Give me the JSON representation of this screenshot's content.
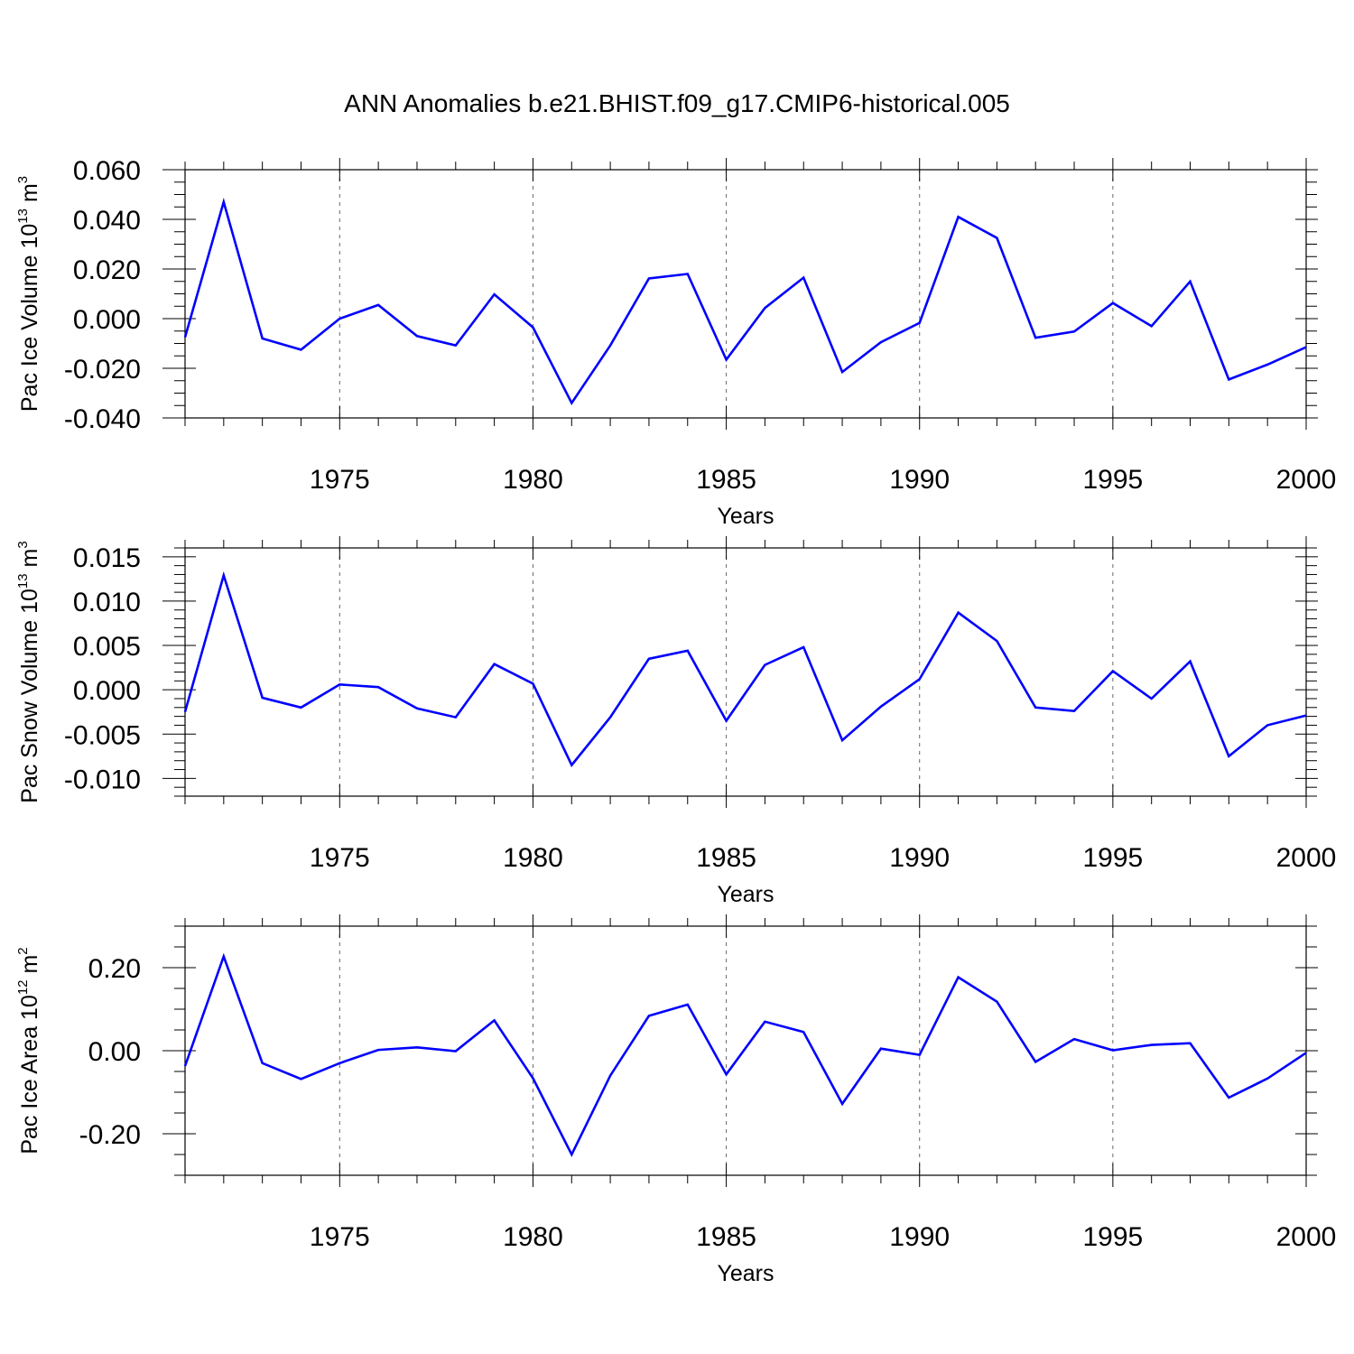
{
  "figure": {
    "title": "ANN Anomalies b.e21.BHIST.f09_g17.CMIP6-historical.005"
  },
  "colors": {
    "line": "#0000ff",
    "axis": "#000000",
    "grid": "#666666"
  },
  "chart_data": [
    {
      "type": "line",
      "ylabel_text": "Pac Ice Volume 10",
      "ylabel_exp": "13",
      "ylabel_unit": "m",
      "ylabel_unit_exp": "3",
      "xlabel": "Years",
      "xlim": [
        1971,
        2000
      ],
      "ylim": [
        -0.04,
        0.06
      ],
      "yticks": [
        -0.04,
        -0.02,
        0.0,
        0.02,
        0.04,
        0.06
      ],
      "ytick_labels": [
        "-0.040",
        "-0.020",
        "0.000",
        "0.020",
        "0.040",
        "0.060"
      ],
      "yminor_step": 0.005,
      "xticks": [
        1975,
        1980,
        1985,
        1990,
        1995,
        2000
      ],
      "xtick_labels": [
        "1975",
        "1980",
        "1985",
        "1990",
        "1995",
        "2000"
      ],
      "grid": "vertical dashed at major x ticks",
      "x": [
        1971,
        1972,
        1973,
        1974,
        1975,
        1976,
        1977,
        1978,
        1979,
        1980,
        1981,
        1982,
        1983,
        1984,
        1985,
        1986,
        1987,
        1988,
        1989,
        1990,
        1991,
        1992,
        1993,
        1994,
        1995,
        1996,
        1997,
        1998,
        1999,
        2000
      ],
      "values": [
        -0.0075,
        0.047,
        -0.008,
        -0.0125,
        0.0,
        0.0055,
        -0.007,
        -0.0108,
        0.0098,
        -0.0035,
        -0.034,
        -0.0108,
        0.0162,
        0.018,
        -0.0165,
        0.0043,
        0.0165,
        -0.0215,
        -0.0095,
        -0.0017,
        0.041,
        0.0325,
        -0.0077,
        -0.0052,
        0.0063,
        -0.003,
        0.015,
        -0.0245,
        -0.0185,
        -0.0115
      ]
    },
    {
      "type": "line",
      "ylabel_text": "Pac Snow Volume 10",
      "ylabel_exp": "13",
      "ylabel_unit": "m",
      "ylabel_unit_exp": "3",
      "xlabel": "Years",
      "xlim": [
        1971,
        2000
      ],
      "ylim": [
        -0.012,
        0.016
      ],
      "yticks": [
        -0.01,
        -0.005,
        0.0,
        0.005,
        0.01,
        0.015
      ],
      "ytick_labels": [
        "-0.010",
        "-0.005",
        "0.000",
        "0.005",
        "0.010",
        "0.015"
      ],
      "yminor_step": 0.001,
      "xticks": [
        1975,
        1980,
        1985,
        1990,
        1995,
        2000
      ],
      "xtick_labels": [
        "1975",
        "1980",
        "1985",
        "1990",
        "1995",
        "2000"
      ],
      "grid": "vertical dashed at major x ticks",
      "x": [
        1971,
        1972,
        1973,
        1974,
        1975,
        1976,
        1977,
        1978,
        1979,
        1980,
        1981,
        1982,
        1983,
        1984,
        1985,
        1986,
        1987,
        1988,
        1989,
        1990,
        1991,
        1992,
        1993,
        1994,
        1995,
        1996,
        1997,
        1998,
        1999,
        2000
      ],
      "values": [
        -0.0025,
        0.0129,
        -0.0009,
        -0.002,
        0.0006,
        0.0003,
        -0.0021,
        -0.0031,
        0.0029,
        0.0007,
        -0.0085,
        -0.0031,
        0.0035,
        0.0044,
        -0.0035,
        0.0028,
        0.0048,
        -0.0057,
        -0.0019,
        0.0012,
        0.0087,
        0.0055,
        -0.002,
        -0.0024,
        0.0021,
        -0.001,
        0.0032,
        -0.0075,
        -0.004,
        -0.0029
      ]
    },
    {
      "type": "line",
      "ylabel_text": "Pac Ice Area 10",
      "ylabel_exp": "12",
      "ylabel_unit": "m",
      "ylabel_unit_exp": "2",
      "xlabel": "Years",
      "xlim": [
        1971,
        2000
      ],
      "ylim": [
        -0.3,
        0.3
      ],
      "yticks": [
        -0.2,
        0.0,
        0.2
      ],
      "ytick_labels": [
        "-0.20",
        "0.00",
        "0.20"
      ],
      "yminor_step": 0.05,
      "xticks": [
        1975,
        1980,
        1985,
        1990,
        1995,
        2000
      ],
      "xtick_labels": [
        "1975",
        "1980",
        "1985",
        "1990",
        "1995",
        "2000"
      ],
      "grid": "vertical dashed at major x ticks",
      "x": [
        1971,
        1972,
        1973,
        1974,
        1975,
        1976,
        1977,
        1978,
        1979,
        1980,
        1981,
        1982,
        1983,
        1984,
        1985,
        1986,
        1987,
        1988,
        1989,
        1990,
        1991,
        1992,
        1993,
        1994,
        1995,
        1996,
        1997,
        1998,
        1999,
        2000
      ],
      "values": [
        -0.037,
        0.227,
        -0.03,
        -0.068,
        -0.03,
        0.002,
        0.008,
        -0.001,
        0.073,
        -0.066,
        -0.25,
        -0.06,
        0.084,
        0.111,
        -0.057,
        0.07,
        0.045,
        -0.128,
        0.005,
        -0.01,
        0.177,
        0.118,
        -0.027,
        0.028,
        0.001,
        0.014,
        0.018,
        -0.113,
        -0.067,
        -0.005
      ]
    }
  ]
}
